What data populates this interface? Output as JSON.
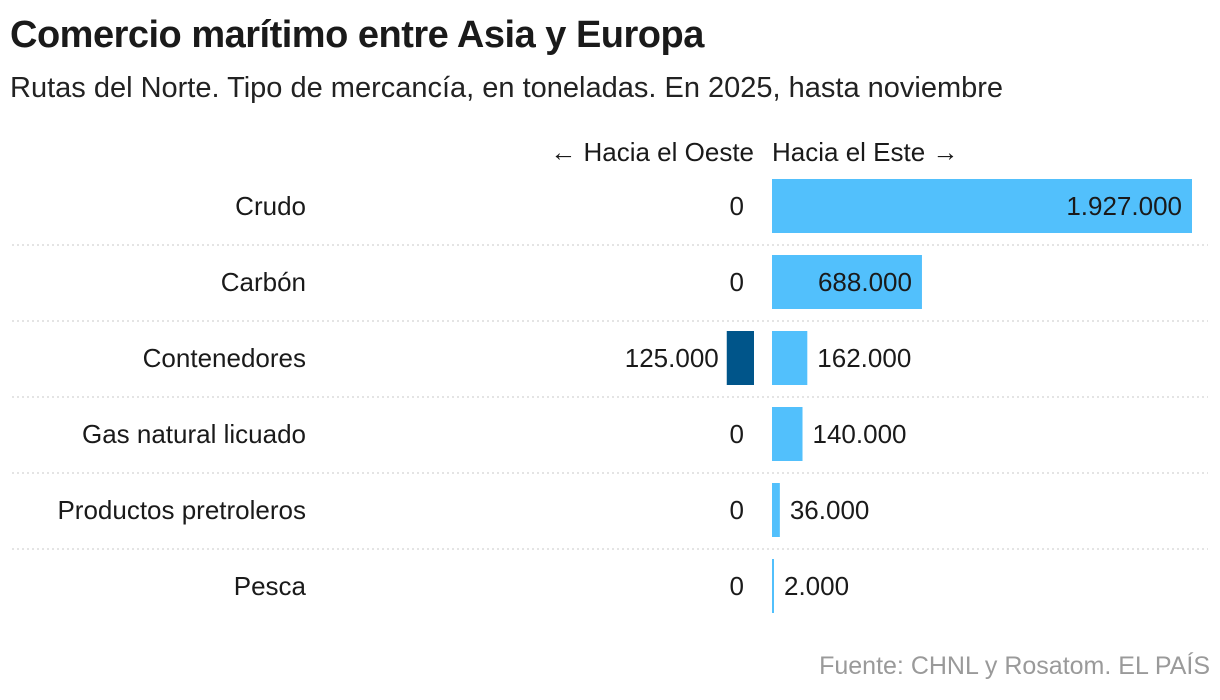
{
  "title": "Comercio marítimo entre Asia y Europa",
  "subtitle": "Rutas del Norte. Tipo de mercancía, en toneladas. En 2025, hasta noviembre",
  "source": "Fuente: CHNL y Rosatom. EL PAÍS",
  "colors": {
    "east": "#52c0fc",
    "west": "#00558a",
    "text": "#1a1a1a",
    "grid": "#c8c8c8",
    "source": "#9a9a9a"
  },
  "chart_data": {
    "type": "bar",
    "orientation": "horizontal",
    "layout": "diverging",
    "title": "Comercio marítimo entre Asia y Europa",
    "subtitle": "Rutas del Norte. Tipo de mercancía, en toneladas. En 2025, hasta noviembre",
    "categories": [
      "Crudo",
      "Carbón",
      "Contenedores",
      "Gas natural licuado",
      "Productos pretroleros",
      "Pesca"
    ],
    "series": [
      {
        "name": "← Hacia el Oeste",
        "values": [
          0,
          0,
          125000,
          0,
          0,
          0
        ],
        "labels": [
          "0",
          "0",
          "125.000",
          "0",
          "0",
          "0"
        ],
        "color": "#00558a",
        "direction": "left"
      },
      {
        "name": "Hacia el Este →",
        "values": [
          1927000,
          688000,
          162000,
          140000,
          36000,
          2000
        ],
        "labels": [
          "1.927.000",
          "688.000",
          "162.000",
          "140.000",
          "36.000",
          "2.000"
        ],
        "color": "#52c0fc",
        "direction": "right"
      }
    ],
    "xlim": [
      0,
      1927000
    ],
    "grid": "dotted row separators",
    "legend": "column headers above bars"
  }
}
